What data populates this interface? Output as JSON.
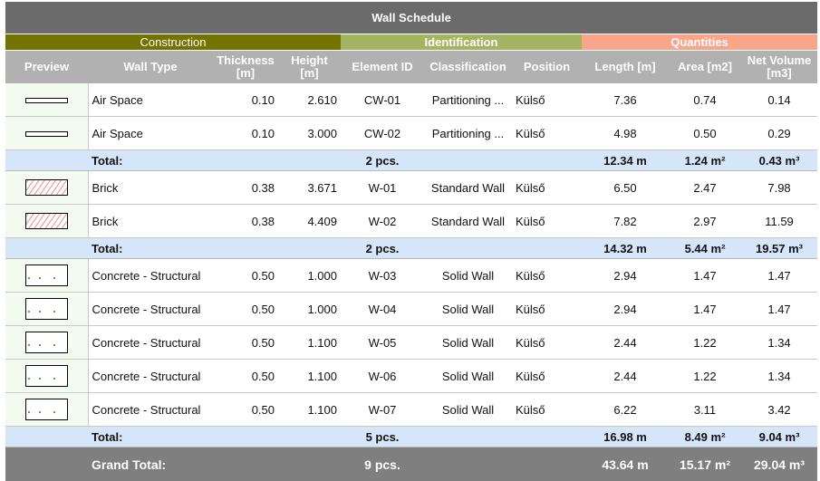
{
  "title": "Wall Schedule",
  "groups": [
    {
      "label": "Construction",
      "color": "#737300"
    },
    {
      "label": "Identification",
      "color": "#a2b562"
    },
    {
      "label": "Quantities",
      "color": "#f8a589"
    }
  ],
  "columns": [
    "Preview",
    "Wall Type",
    "Thickness [m]",
    "Height [m]",
    "Element ID",
    "Classification",
    "Position",
    "Length [m]",
    "Area [m2]",
    "Net Volume [m3]"
  ],
  "sections": [
    {
      "rows": [
        {
          "preview": "air-space-swatch",
          "type": "Air Space",
          "thickness": "0.10",
          "height": "2.610",
          "id": "CW-01",
          "classification": "Partitioning ...",
          "position": "Külső",
          "length": "7.36",
          "area": "0.74",
          "volume": "0.14"
        },
        {
          "preview": "air-space-swatch",
          "type": "Air Space",
          "thickness": "0.10",
          "height": "3.000",
          "id": "CW-02",
          "classification": "Partitioning ...",
          "position": "Külső",
          "length": "4.98",
          "area": "0.50",
          "volume": "0.29"
        }
      ],
      "total": {
        "label": "Total:",
        "count": "2 pcs.",
        "length": "12.34 m",
        "area": "1.24 m²",
        "volume": "0.43 m³"
      }
    },
    {
      "rows": [
        {
          "preview": "brick-hatch-swatch",
          "type": "Brick",
          "thickness": "0.38",
          "height": "3.671",
          "id": "W-01",
          "classification": "Standard Wall",
          "position": "Külső",
          "length": "6.50",
          "area": "2.47",
          "volume": "7.98"
        },
        {
          "preview": "brick-hatch-swatch",
          "type": "Brick",
          "thickness": "0.38",
          "height": "4.409",
          "id": "W-02",
          "classification": "Standard Wall",
          "position": "Külső",
          "length": "7.82",
          "area": "2.97",
          "volume": "11.59"
        }
      ],
      "total": {
        "label": "Total:",
        "count": "2 pcs.",
        "length": "14.32 m",
        "area": "5.44 m²",
        "volume": "19.57 m³"
      }
    },
    {
      "rows": [
        {
          "preview": "concrete-swatch",
          "type": "Concrete - Structural",
          "thickness": "0.50",
          "height": "1.000",
          "id": "W-03",
          "classification": "Solid Wall",
          "position": "Külső",
          "length": "2.94",
          "area": "1.47",
          "volume": "1.47"
        },
        {
          "preview": "concrete-swatch",
          "type": "Concrete - Structural",
          "thickness": "0.50",
          "height": "1.000",
          "id": "W-04",
          "classification": "Solid Wall",
          "position": "Külső",
          "length": "2.94",
          "area": "1.47",
          "volume": "1.47"
        },
        {
          "preview": "concrete-swatch",
          "type": "Concrete - Structural",
          "thickness": "0.50",
          "height": "1.100",
          "id": "W-05",
          "classification": "Solid Wall",
          "position": "Külső",
          "length": "2.44",
          "area": "1.22",
          "volume": "1.34"
        },
        {
          "preview": "concrete-swatch",
          "type": "Concrete - Structural",
          "thickness": "0.50",
          "height": "1.100",
          "id": "W-06",
          "classification": "Solid Wall",
          "position": "Külső",
          "length": "2.44",
          "area": "1.22",
          "volume": "1.34"
        },
        {
          "preview": "concrete-swatch",
          "type": "Concrete - Structural",
          "thickness": "0.50",
          "height": "1.100",
          "id": "W-07",
          "classification": "Solid Wall",
          "position": "Külső",
          "length": "6.22",
          "area": "3.11",
          "volume": "3.42"
        }
      ],
      "total": {
        "label": "Total:",
        "count": "5 pcs.",
        "length": "16.98 m",
        "area": "8.49 m²",
        "volume": "9.04 m³"
      }
    }
  ],
  "grand_total": {
    "label": "Grand Total:",
    "count": "9 pcs.",
    "length": "43.64 m",
    "area": "15.17 m²",
    "volume": "29.04 m³"
  }
}
